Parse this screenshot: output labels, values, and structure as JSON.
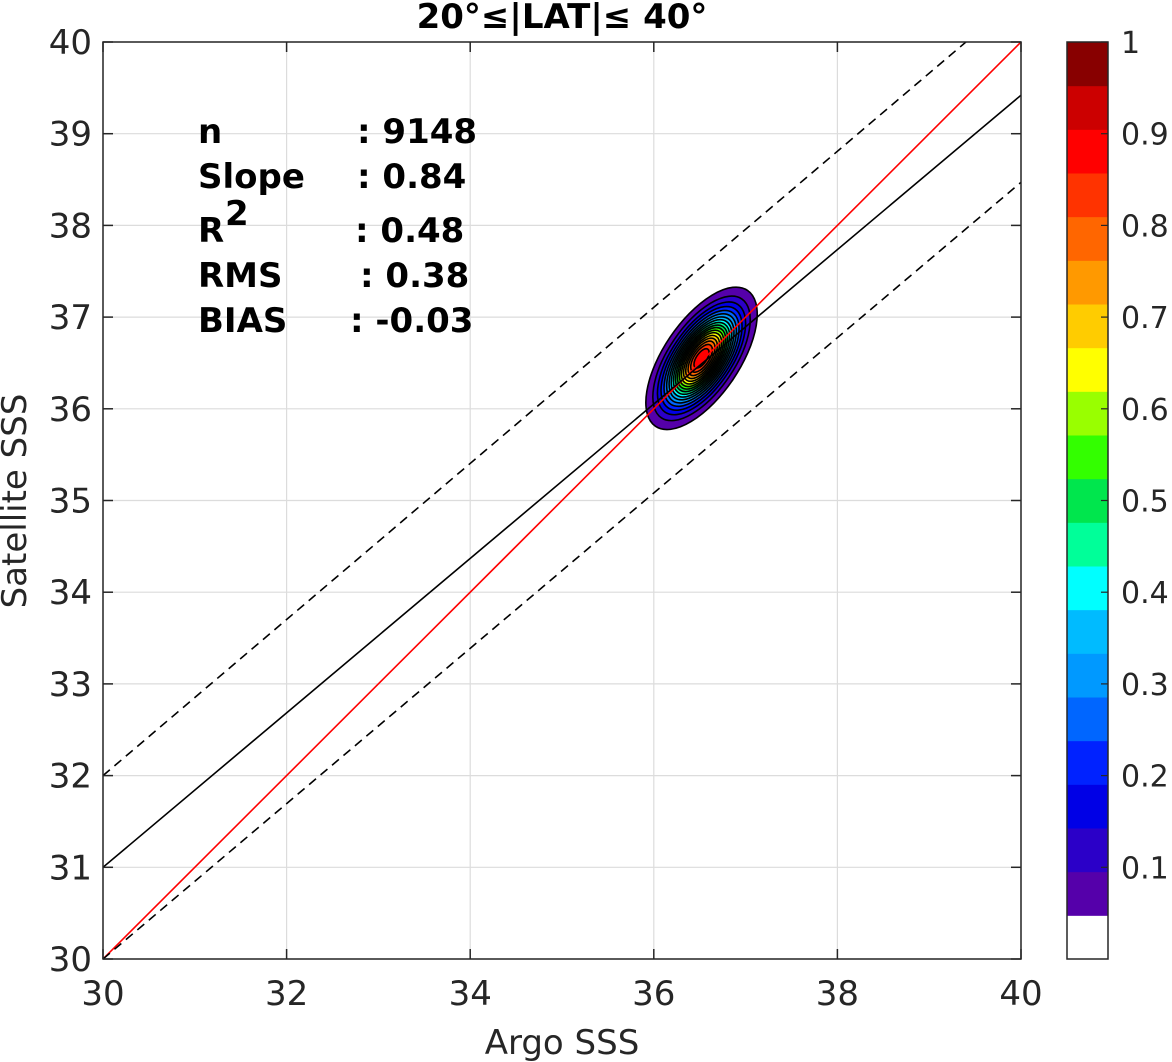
{
  "chart_data": {
    "type": "contour",
    "title": "20°≤|LAT|≤ 40°",
    "xlabel": "Argo SSS",
    "ylabel": "Satellite SSS",
    "xlim": [
      30,
      40
    ],
    "ylim": [
      30,
      40
    ],
    "xticks": [
      "30",
      "32",
      "34",
      "36",
      "38",
      "40"
    ],
    "yticks": [
      "30",
      "31",
      "32",
      "33",
      "34",
      "35",
      "36",
      "37",
      "38",
      "39",
      "40"
    ],
    "grid": true,
    "stats": [
      {
        "key": "n",
        "value": ": 9148"
      },
      {
        "key": "Slope",
        "value": ": 0.84"
      },
      {
        "key": "R",
        "sup": "2",
        "value": ": 0.48"
      },
      {
        "key": "RMS",
        "value": ": 0.38"
      },
      {
        "key": "BIAS",
        "value": ": -0.03"
      }
    ],
    "lines": [
      {
        "role": "one-to-one",
        "color": "#ff0000",
        "points": [
          [
            30,
            30
          ],
          [
            40,
            40
          ]
        ]
      },
      {
        "role": "regression",
        "color": "#000000",
        "points": [
          [
            30,
            31.0
          ],
          [
            40,
            39.42
          ]
        ]
      },
      {
        "role": "upper-bound",
        "color": "#000000",
        "dashed": true,
        "points": [
          [
            30,
            32.0
          ],
          [
            39.4,
            40.0
          ]
        ]
      },
      {
        "role": "lower-bound",
        "color": "#000000",
        "dashed": true,
        "points": [
          [
            30,
            30.0
          ],
          [
            40,
            38.47
          ]
        ]
      }
    ],
    "density": {
      "center": [
        36.52,
        36.55
      ],
      "sigma_x": 0.25,
      "sigma_y": 0.32,
      "correlation": 0.62,
      "max_level": 0.95
    },
    "colorbar": {
      "range": [
        0,
        1
      ],
      "ticks": [
        "0.1",
        "0.2",
        "0.3",
        "0.4",
        "0.5",
        "0.6",
        "0.7",
        "0.8",
        "0.9",
        "1"
      ],
      "levels": [
        0,
        0.05,
        0.1,
        0.15,
        0.2,
        0.25,
        0.3,
        0.35,
        0.4,
        0.45,
        0.5,
        0.55,
        0.6,
        0.65,
        0.7,
        0.75,
        0.8,
        0.85,
        0.9,
        0.95
      ],
      "colors": [
        "#ffffff",
        "#5500aa",
        "#2b00c8",
        "#0000e6",
        "#0022ff",
        "#0066ff",
        "#0099ff",
        "#00bbff",
        "#00ffff",
        "#00ff99",
        "#00e64d",
        "#33ff00",
        "#99ff00",
        "#ffff00",
        "#ffcc00",
        "#ff9900",
        "#ff6600",
        "#ff3300",
        "#ff0000",
        "#cc0000",
        "#880000"
      ]
    }
  }
}
